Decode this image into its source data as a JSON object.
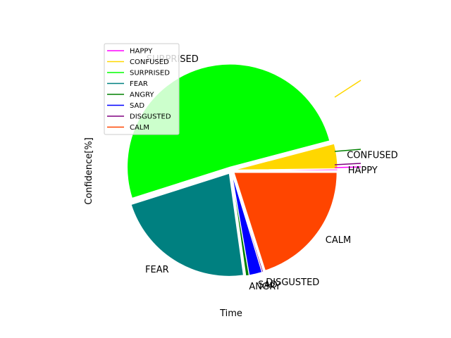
{
  "chart_data": {
    "type": "pie",
    "xlabel": "Time",
    "ylabel": "Confidence[%]",
    "legend_position": "upper-left",
    "slices": [
      {
        "label": "HAPPY",
        "value": 0.2,
        "color": "#ff00ff"
      },
      {
        "label": "CONFUSED",
        "value": 3.9,
        "color": "#ffd700"
      },
      {
        "label": "SURPRISED",
        "value": 50.8,
        "color": "#00ff00"
      },
      {
        "label": "FEAR",
        "value": 22.3,
        "color": "#008080"
      },
      {
        "label": "ANGRY",
        "value": 0.5,
        "color": "#008000"
      },
      {
        "label": "SAD",
        "value": 2.0,
        "color": "#0000ff"
      },
      {
        "label": "DISGUSTED",
        "value": 0.2,
        "color": "#800080"
      },
      {
        "label": "CALM",
        "value": 20.1,
        "color": "#ff4500"
      }
    ]
  }
}
